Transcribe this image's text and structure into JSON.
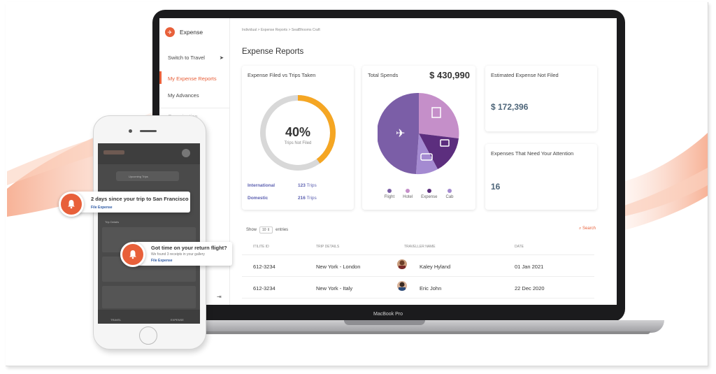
{
  "app": {
    "name": "Expense"
  },
  "sidebar": {
    "switch_label": "Switch to Travel",
    "items": [
      {
        "label": "My Expense Reports",
        "active": true
      },
      {
        "label": "My Advances",
        "active": false
      }
    ],
    "faded_item": "Organization"
  },
  "breadcrumb": "Individual > Expense Reports > SeatBhooms Craft",
  "page_title": "Expense Reports",
  "cards": {
    "filed_vs_trips": {
      "title": "Expense Filed vs Trips Taken",
      "percent": "40%",
      "percent_value": 0.4,
      "sub": "Trips Not Filed",
      "stats": [
        {
          "label": "International",
          "value": "123",
          "unit": "Trips"
        },
        {
          "label": "Domestic",
          "value": "216",
          "unit": "Trips"
        }
      ]
    },
    "total_spends": {
      "title": "Total Spends",
      "amount": "$ 430,990",
      "legend": [
        {
          "label": "Flight",
          "color": "#7b5ea7"
        },
        {
          "label": "Hotel",
          "color": "#c58fc9"
        },
        {
          "label": "Expense",
          "color": "#5c2e7e"
        },
        {
          "label": "Cab",
          "color": "#a48ad1"
        }
      ]
    },
    "not_filed": {
      "title": "Estimated Expense Not Filed",
      "amount": "$ 172,396"
    },
    "attention": {
      "title": "Expenses That Need Your Attention",
      "count": "16"
    }
  },
  "table": {
    "show_label": "Show",
    "entries_value": "10",
    "entries_label": "entries",
    "search_label": "Search",
    "columns": [
      "ITILITE ID",
      "TRIP DETAILS",
      "TRAVELLER NAME",
      "DATE"
    ],
    "rows": [
      {
        "id": "612-3234",
        "trip": "New York - London",
        "name": "Kaley Hyland",
        "date": "01 Jan 2021"
      },
      {
        "id": "612-3234",
        "trip": "New York - Italy",
        "name": "Eric John",
        "date": "22 Dec 2020"
      }
    ]
  },
  "laptop_label": "MacBook Pro",
  "phone": {
    "tabs": [
      "TRAVEL",
      "EXPENSE"
    ],
    "section": "Trip Details",
    "upcoming": "Upcoming Trips"
  },
  "notifications": [
    {
      "title": "2 days since your trip to San Francisco",
      "link": "File Expense"
    },
    {
      "title": "Got time on your return flight?",
      "sub": "We found 3 receipts in your gallery",
      "link": "File Expense"
    }
  ],
  "colors": {
    "accent": "#e8603a",
    "ring": "#f5a623",
    "ring_bg": "#d8d8d8"
  }
}
